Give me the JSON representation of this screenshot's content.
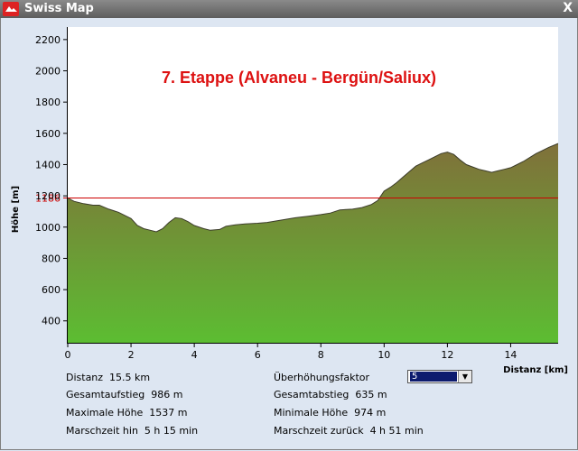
{
  "window": {
    "title": "Swiss Map",
    "close_label": "X",
    "icon": "swiss-map-app-icon"
  },
  "chart_data": {
    "type": "area",
    "title": "7. Etappe (Alvaneu - Bergün/Saliux)",
    "xlabel": "Distanz [km]",
    "ylabel": "Höhe [m]",
    "xlim": [
      0,
      15.5
    ],
    "ylim": [
      260,
      2280
    ],
    "x_ticks": [
      0,
      2,
      4,
      6,
      8,
      10,
      12,
      14
    ],
    "y_ticks": [
      400,
      600,
      800,
      1000,
      1200,
      1400,
      1600,
      1800,
      2000,
      2200
    ],
    "reference_line": {
      "value": 1186,
      "label": "1186",
      "color": "#cc0000"
    },
    "fill_top_color": "#80703a",
    "fill_bottom_color": "#5cbd32",
    "title_color": "#dd1111",
    "profile": {
      "x": [
        0,
        0.2,
        0.5,
        0.8,
        1.0,
        1.3,
        1.6,
        2.0,
        2.2,
        2.4,
        2.6,
        2.8,
        3.0,
        3.2,
        3.4,
        3.6,
        3.8,
        4.0,
        4.3,
        4.5,
        4.8,
        5.0,
        5.3,
        5.6,
        6.0,
        6.3,
        6.6,
        6.9,
        7.2,
        7.6,
        8.0,
        8.3,
        8.6,
        9.0,
        9.3,
        9.6,
        9.8,
        10.0,
        10.2,
        10.4,
        10.6,
        10.8,
        11.0,
        11.2,
        11.4,
        11.6,
        11.8,
        12.0,
        12.2,
        12.4,
        12.6,
        12.8,
        13.0,
        13.2,
        13.4,
        13.6,
        13.8,
        14.0,
        14.2,
        14.4,
        14.6,
        14.8,
        15.0,
        15.2,
        15.5
      ],
      "y": [
        1186,
        1165,
        1150,
        1140,
        1140,
        1115,
        1095,
        1055,
        1010,
        990,
        980,
        970,
        990,
        1030,
        1060,
        1055,
        1035,
        1010,
        990,
        980,
        985,
        1005,
        1015,
        1020,
        1025,
        1030,
        1040,
        1050,
        1060,
        1070,
        1080,
        1090,
        1110,
        1115,
        1125,
        1145,
        1170,
        1230,
        1255,
        1285,
        1320,
        1355,
        1390,
        1410,
        1430,
        1450,
        1470,
        1480,
        1465,
        1430,
        1400,
        1385,
        1370,
        1360,
        1350,
        1360,
        1370,
        1380,
        1400,
        1420,
        1445,
        1470,
        1490,
        1510,
        1535
      ]
    }
  },
  "info": {
    "distance": "Distanz  15.5 km",
    "ascent": "Gesamtaufstieg  986 m",
    "max_height": "Maximale Höhe  1537 m",
    "time_forward": "Marschzeit hin  5 h 15 min",
    "factor_label": "Überhöhungsfaktor",
    "descent": "Gesamtabstieg  635 m",
    "min_height": "Minimale Höhe  974 m",
    "time_back": "Marschzeit zurück  4 h 51 min"
  },
  "factor_select": {
    "selected": "5"
  }
}
